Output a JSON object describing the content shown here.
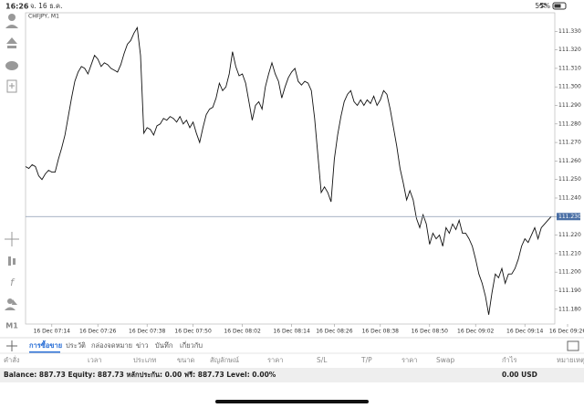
{
  "status_bar": {
    "time": "16:26",
    "date": "จ. 16 ธ.ค.",
    "battery": "55%"
  },
  "toolbar": {
    "timeframe": "M1"
  },
  "chart_data": {
    "type": "line",
    "title": "CHFJPY, M1",
    "color": "#111111",
    "categories": [
      null,
      null,
      null,
      null,
      null,
      null,
      null,
      null,
      "16 Dec 07:14",
      null,
      null,
      null,
      null,
      null,
      null,
      null,
      null,
      null,
      null,
      null,
      null,
      null,
      "16 Dec 07:26",
      null,
      null,
      null,
      null,
      null,
      null,
      null,
      null,
      null,
      null,
      null,
      null,
      null,
      null,
      "16 Dec 07:38",
      null,
      null,
      null,
      null,
      null,
      null,
      null,
      null,
      null,
      null,
      null,
      null,
      null,
      "16 Dec 07:50",
      null,
      null,
      null,
      null,
      null,
      null,
      null,
      null,
      null,
      null,
      null,
      null,
      null,
      null,
      "16 Dec 08:02",
      null,
      null,
      null,
      null,
      null,
      null,
      null,
      null,
      null,
      null,
      null,
      null,
      null,
      null,
      "16 Dec 08:14",
      null,
      null,
      null,
      null,
      null,
      null,
      null,
      null,
      null,
      null,
      null,
      null,
      "16 Dec 08:26",
      null,
      null,
      null,
      null,
      null,
      null,
      null,
      null,
      null,
      null,
      null,
      null,
      null,
      "16 Dec 08:38",
      null,
      null,
      null,
      null,
      null,
      null,
      null,
      null,
      null,
      null,
      null,
      null,
      null,
      null,
      "16 Dec 08:50",
      null,
      null,
      null,
      null,
      null,
      null,
      null,
      null,
      null,
      null,
      null,
      null,
      null,
      "16 Dec 09:02",
      null,
      null,
      null,
      null,
      null,
      null,
      null,
      null,
      null,
      null,
      null,
      null,
      null,
      null,
      "16 Dec 09:14",
      null,
      null,
      null,
      null,
      null,
      null,
      null,
      null,
      null,
      null,
      null,
      null,
      "16 Dec 09:26"
    ],
    "values": [
      111.257,
      111.256,
      111.258,
      111.257,
      111.252,
      111.25,
      111.253,
      111.255,
      111.254,
      111.254,
      111.261,
      111.267,
      111.274,
      111.284,
      111.294,
      111.303,
      111.308,
      111.311,
      111.31,
      111.307,
      111.312,
      111.317,
      111.315,
      111.311,
      111.313,
      111.312,
      111.31,
      111.309,
      111.308,
      111.312,
      111.318,
      111.323,
      111.325,
      111.329,
      111.332,
      111.317,
      111.275,
      111.278,
      111.277,
      111.274,
      111.279,
      111.28,
      111.283,
      111.282,
      111.284,
      111.283,
      111.281,
      111.284,
      111.28,
      111.282,
      111.278,
      111.281,
      111.275,
      111.27,
      111.278,
      111.285,
      111.288,
      111.289,
      111.294,
      111.302,
      111.298,
      111.3,
      111.307,
      111.319,
      111.311,
      111.306,
      111.307,
      111.302,
      111.292,
      111.282,
      111.29,
      111.292,
      111.288,
      111.3,
      111.307,
      111.313,
      111.307,
      111.303,
      111.294,
      111.3,
      111.305,
      111.308,
      111.31,
      111.303,
      111.301,
      111.303,
      111.302,
      111.298,
      111.283,
      111.263,
      111.243,
      111.246,
      111.243,
      111.238,
      111.261,
      111.274,
      111.284,
      111.292,
      111.296,
      111.298,
      111.292,
      111.29,
      111.293,
      111.29,
      111.293,
      111.291,
      111.295,
      111.29,
      111.293,
      111.298,
      111.296,
      111.288,
      111.278,
      111.268,
      111.256,
      111.248,
      111.239,
      111.244,
      111.239,
      111.229,
      111.224,
      111.231,
      111.226,
      111.215,
      111.221,
      111.218,
      111.22,
      111.214,
      111.224,
      111.221,
      111.226,
      111.223,
      111.228,
      111.221,
      111.221,
      111.218,
      111.214,
      111.207,
      111.199,
      111.194,
      111.187,
      111.177,
      111.189,
      111.199,
      111.197,
      111.202,
      111.194,
      111.199,
      111.199,
      111.202,
      111.207,
      111.214,
      111.218,
      111.216,
      111.22,
      111.224,
      111.218,
      111.224,
      111.226,
      111.228,
      111.23,
      null,
      null,
      null,
      null,
      null
    ],
    "ylim": [
      111.172,
      111.34
    ],
    "yticks": [
      {
        "value": 111.18,
        "label": "111.180"
      },
      {
        "value": 111.19,
        "label": "111.190"
      },
      {
        "value": 111.2,
        "label": "111.200"
      },
      {
        "value": 111.21,
        "label": "111.210"
      },
      {
        "value": 111.22,
        "label": "111.220"
      },
      {
        "value": 111.23,
        "label": "111.230"
      },
      {
        "value": 111.24,
        "label": "111.240"
      },
      {
        "value": 111.25,
        "label": "111.250"
      },
      {
        "value": 111.26,
        "label": "111.260"
      },
      {
        "value": 111.27,
        "label": "111.270"
      },
      {
        "value": 111.28,
        "label": "111.280"
      },
      {
        "value": 111.29,
        "label": "111.290"
      },
      {
        "value": 111.3,
        "label": "111.300"
      },
      {
        "value": 111.31,
        "label": "111.310"
      },
      {
        "value": 111.32,
        "label": "111.320"
      },
      {
        "value": 111.33,
        "label": "111.330"
      }
    ],
    "current_price": {
      "value": 111.23,
      "label": "111.230"
    }
  },
  "tabs": [
    "การซื้อขาย",
    "ประวัติ",
    "กล่องจดหมาย",
    "ข่าว",
    "บันทึก",
    "เกี่ยวกับ"
  ],
  "columns": [
    "คำสั่ง",
    "เวลา",
    "ประเภท",
    "ขนาด",
    "สัญลักษณ์",
    "ราคา",
    "S/L",
    "T/P",
    "ราคา",
    "Swap",
    "กำไร",
    "หมายเหตุ"
  ],
  "summary": {
    "text": "Balance: 887.73 Equity: 887.73 หลักประกัน: 0.00 ฟรี: 887.73 Level: 0.00%",
    "profit": "0.00 USD"
  }
}
